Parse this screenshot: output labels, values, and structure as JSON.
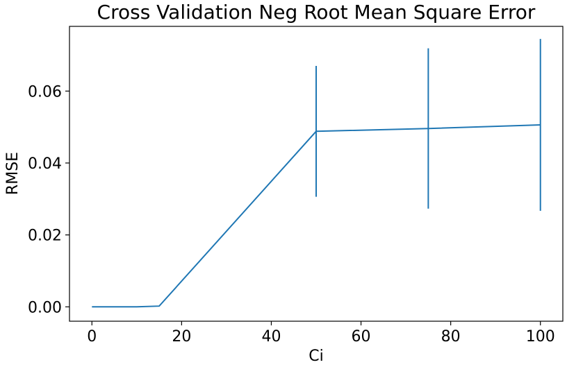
{
  "chart_data": {
    "type": "line",
    "title": "Cross Validation Neg Root Mean Square Error",
    "xlabel": "Ci",
    "ylabel": "RMSE",
    "xlim": [
      -5,
      105
    ],
    "ylim": [
      -0.004,
      0.078
    ],
    "xticks": [
      0,
      20,
      40,
      60,
      80,
      100
    ],
    "xtick_labels": [
      "0",
      "20",
      "40",
      "60",
      "80",
      "100"
    ],
    "yticks": [
      0.0,
      0.02,
      0.04,
      0.06
    ],
    "ytick_labels": [
      "0.00",
      "0.02",
      "0.04",
      "0.06"
    ],
    "grid": false,
    "series": [
      {
        "x": [
          0,
          10,
          15,
          50,
          75,
          100
        ],
        "y": [
          0.0,
          0.0,
          0.0002,
          0.0488,
          0.0496,
          0.0506
        ],
        "yerr": [
          0.0,
          0.0,
          0.0,
          0.0182,
          0.0223,
          0.0239
        ],
        "color": "#1f77b4"
      }
    ]
  }
}
